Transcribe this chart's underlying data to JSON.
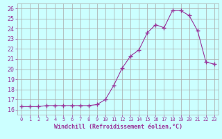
{
  "x": [
    0,
    1,
    2,
    3,
    4,
    5,
    6,
    7,
    8,
    9,
    10,
    11,
    12,
    13,
    14,
    15,
    16,
    17,
    18,
    19,
    20,
    21,
    22,
    23
  ],
  "y": [
    16.3,
    16.3,
    16.3,
    16.4,
    16.4,
    16.4,
    16.4,
    16.4,
    16.4,
    16.5,
    17.0,
    18.4,
    20.1,
    21.3,
    21.9,
    23.6,
    24.4,
    24.1,
    25.8,
    25.8,
    25.3,
    23.8,
    20.7,
    20.5
  ],
  "line_color": "#993399",
  "marker": "+",
  "marker_size": 4,
  "bg_color": "#ccffff",
  "grid_color": "#aaaaaa",
  "xlabel": "Windchill (Refroidissement éolien,°C)",
  "xlim": [
    -0.5,
    23.5
  ],
  "ylim": [
    15.5,
    26.5
  ],
  "yticks": [
    16,
    17,
    18,
    19,
    20,
    21,
    22,
    23,
    24,
    25,
    26
  ],
  "xticks": [
    0,
    1,
    2,
    3,
    4,
    5,
    6,
    7,
    8,
    9,
    10,
    11,
    12,
    13,
    14,
    15,
    16,
    17,
    18,
    19,
    20,
    21,
    22,
    23
  ],
  "tick_color": "#993399",
  "xlabel_color": "#993399"
}
